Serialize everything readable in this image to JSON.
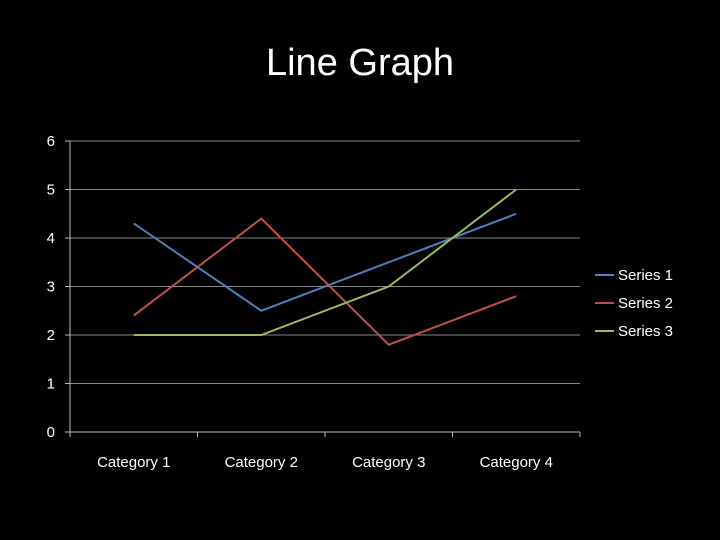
{
  "slide": {
    "title": "Line Graph"
  },
  "chart_data": {
    "type": "line",
    "title": "Line Graph",
    "categories": [
      "Category 1",
      "Category 2",
      "Category 3",
      "Category 4"
    ],
    "series": [
      {
        "name": "Series 1",
        "values": [
          4.3,
          2.5,
          3.5,
          4.5
        ],
        "color": "#4f81bd"
      },
      {
        "name": "Series 2",
        "values": [
          2.4,
          4.4,
          1.8,
          2.8
        ],
        "color": "#c0504d"
      },
      {
        "name": "Series 3",
        "values": [
          2.0,
          2.0,
          3.0,
          5.0
        ],
        "color": "#9bbb59"
      }
    ],
    "ylim": [
      0,
      6
    ],
    "yticks": [
      "0",
      "1",
      "2",
      "3",
      "4",
      "5",
      "6"
    ],
    "grid": true,
    "legend": "right",
    "background": "#000000",
    "grid_color": "#888888",
    "axis_color": "#bbbbbb"
  }
}
